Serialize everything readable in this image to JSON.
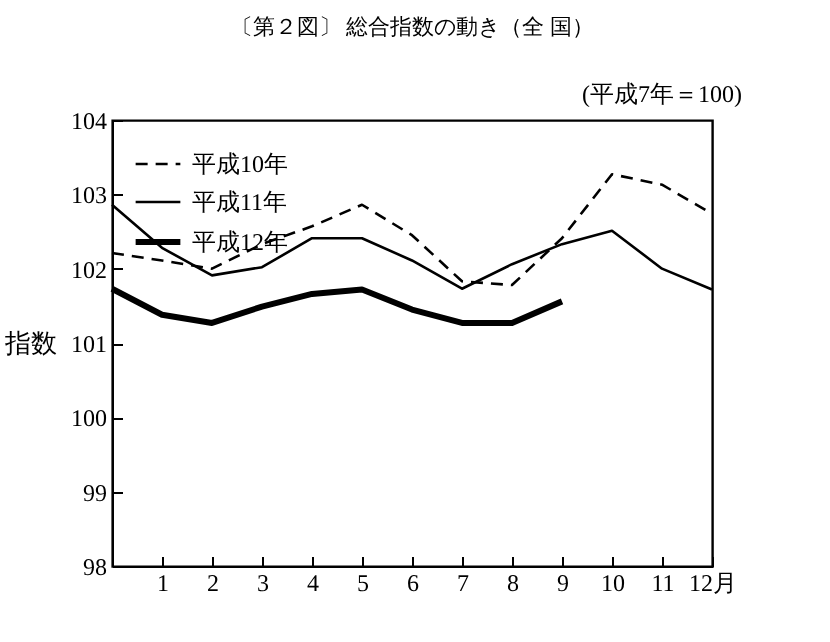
{
  "chart_data": {
    "type": "line",
    "title": "〔第２図〕 総合指数の動き（全 国）",
    "ylabel": "指数",
    "annotations": [
      "(平成7年＝100)"
    ],
    "x": [
      0,
      1,
      2,
      3,
      4,
      5,
      6,
      7,
      8,
      9,
      10,
      11,
      12
    ],
    "xlim": [
      0,
      12
    ],
    "xticks": [
      1,
      2,
      3,
      4,
      5,
      6,
      7,
      8,
      9,
      10,
      11,
      {
        "value": 12,
        "label": "12月"
      }
    ],
    "ylim": [
      98,
      104
    ],
    "yticks": [
      98,
      99,
      100,
      101,
      102,
      103,
      104
    ],
    "grid": false,
    "legend": "top left",
    "series": [
      {
        "name": "平成10年",
        "color": "#000000",
        "line_style": "dashed",
        "values": [
          102.21,
          102.11,
          102.0,
          102.33,
          102.57,
          102.86,
          102.45,
          101.83,
          101.78,
          102.41,
          103.27,
          103.13,
          102.74
        ]
      },
      {
        "name": "平成11年",
        "color": "#000000",
        "line_style": "solid",
        "values": [
          102.86,
          102.28,
          101.91,
          102.02,
          102.41,
          102.41,
          102.11,
          101.73,
          102.06,
          102.33,
          102.51,
          102.0,
          101.72
        ]
      },
      {
        "name": "平成12年",
        "color": "#000000",
        "line_style": "solid",
        "values": [
          101.73,
          101.38,
          101.27,
          101.49,
          101.66,
          101.72,
          101.45,
          101.27,
          101.27,
          101.56,
          null,
          null,
          null
        ]
      }
    ]
  }
}
